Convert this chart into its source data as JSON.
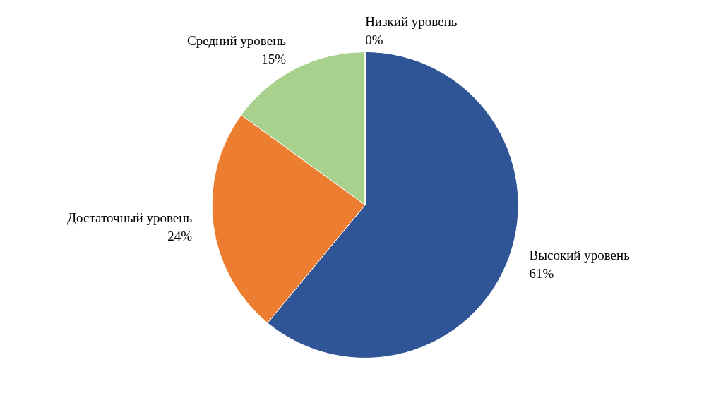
{
  "chart_data": {
    "type": "pie",
    "categories": [
      "Высокий уровень",
      "Достаточный уровень",
      "Средний уровень",
      "Низкий уровень"
    ],
    "values": [
      61,
      24,
      15,
      0
    ],
    "value_labels": [
      "61%",
      "24%",
      "15%",
      "0%"
    ],
    "colors": [
      "#2f5597",
      "#ed7d31",
      "#a9d18e",
      "#a5a5a5"
    ],
    "legend": false
  }
}
